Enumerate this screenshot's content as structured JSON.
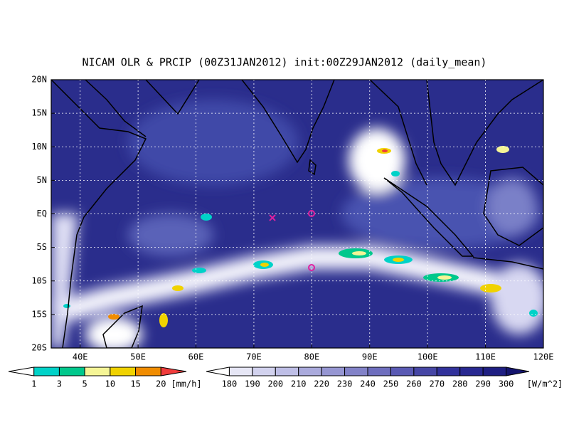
{
  "header": {
    "title": "NICAM OLR & PRCIP (00Z31JAN2012) init:00Z29JAN2012 (daily_mean)"
  },
  "map": {
    "xlim": [
      35,
      120
    ],
    "ylim": [
      -20,
      20
    ],
    "xticks": [
      {
        "value": 40,
        "label": "40E"
      },
      {
        "value": 50,
        "label": "50E"
      },
      {
        "value": 60,
        "label": "60E"
      },
      {
        "value": 70,
        "label": "70E"
      },
      {
        "value": 80,
        "label": "80E"
      },
      {
        "value": 90,
        "label": "90E"
      },
      {
        "value": 100,
        "label": "100E"
      },
      {
        "value": 110,
        "label": "110E"
      },
      {
        "value": 120,
        "label": "120E"
      }
    ],
    "yticks": [
      {
        "value": 20,
        "label": "20N"
      },
      {
        "value": 15,
        "label": "15N"
      },
      {
        "value": 10,
        "label": "10N"
      },
      {
        "value": 5,
        "label": "5N"
      },
      {
        "value": 0,
        "label": "EQ"
      },
      {
        "value": -5,
        "label": "5S"
      },
      {
        "value": -10,
        "label": "10S"
      },
      {
        "value": -15,
        "label": "15S"
      },
      {
        "value": -20,
        "label": "20S"
      }
    ],
    "grid": true
  },
  "precip_colorbar": {
    "levels": [
      1,
      3,
      5,
      10,
      15,
      20
    ],
    "units": "[mm/h]",
    "colors": [
      "#ffffff",
      "#00d2c8",
      "#00c88c",
      "#f5f596",
      "#f0d200",
      "#f08c00",
      "#f03c3c"
    ]
  },
  "olr_colorbar": {
    "levels": [
      180,
      190,
      200,
      210,
      220,
      230,
      240,
      250,
      260,
      270,
      280,
      290,
      300
    ],
    "units": "[W/m^2]",
    "colors": [
      "#ffffff",
      "#e6e6f5",
      "#d2d2ee",
      "#bebee6",
      "#aaaadc",
      "#9696d2",
      "#8282c8",
      "#6e6ebe",
      "#5a5ab4",
      "#4646a5",
      "#32329b",
      "#282891",
      "#1e1e82",
      "#14146e"
    ]
  }
}
